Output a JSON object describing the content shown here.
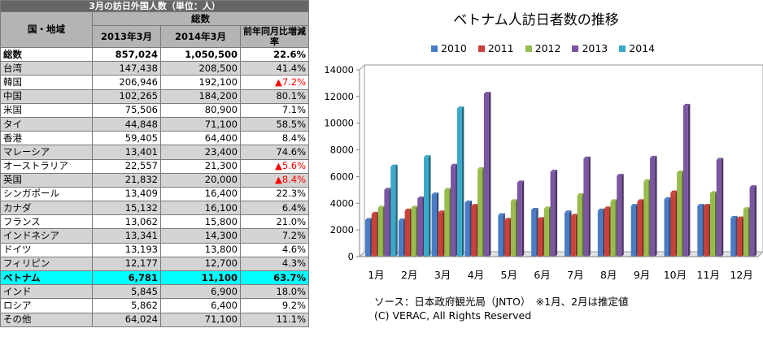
{
  "table": {
    "caption": "3月の訪日外国人数（単位：人）",
    "header": {
      "country_region": "国・地域",
      "total_group": "総数",
      "col_2013": "2013年3月",
      "col_2014": "2014年3月",
      "col_growth": "前年同月比増減率"
    },
    "rows": [
      {
        "name": "総数",
        "v2013": "857,024",
        "v2014": "1,050,500",
        "rate": "22.6%",
        "negative": false
      },
      {
        "name": "台湾",
        "v2013": "147,438",
        "v2014": "208,500",
        "rate": "41.4%",
        "negative": false
      },
      {
        "name": "韓国",
        "v2013": "206,946",
        "v2014": "192,100",
        "rate": "▲7.2%",
        "negative": true
      },
      {
        "name": "中国",
        "v2013": "102,265",
        "v2014": "184,200",
        "rate": "80.1%",
        "negative": false
      },
      {
        "name": "米国",
        "v2013": "75,506",
        "v2014": "80,900",
        "rate": "7.1%",
        "negative": false
      },
      {
        "name": "タイ",
        "v2013": "44,848",
        "v2014": "71,100",
        "rate": "58.5%",
        "negative": false
      },
      {
        "name": "香港",
        "v2013": "59,405",
        "v2014": "64,400",
        "rate": "8.4%",
        "negative": false
      },
      {
        "name": "マレーシア",
        "v2013": "13,401",
        "v2014": "23,400",
        "rate": "74.6%",
        "negative": false
      },
      {
        "name": "オーストラリア",
        "v2013": "22,557",
        "v2014": "21,300",
        "rate": "▲5.6%",
        "negative": true
      },
      {
        "name": "英国",
        "v2013": "21,832",
        "v2014": "20,000",
        "rate": "▲8.4%",
        "negative": true
      },
      {
        "name": "シンガポール",
        "v2013": "13,409",
        "v2014": "16,400",
        "rate": "22.3%",
        "negative": false
      },
      {
        "name": "カナダ",
        "v2013": "15,132",
        "v2014": "16,100",
        "rate": "6.4%",
        "negative": false
      },
      {
        "name": "フランス",
        "v2013": "13,062",
        "v2014": "15,800",
        "rate": "21.0%",
        "negative": false
      },
      {
        "name": "インドネシア",
        "v2013": "13,341",
        "v2014": "14,300",
        "rate": "7.2%",
        "negative": false
      },
      {
        "name": "ドイツ",
        "v2013": "13,193",
        "v2014": "13,800",
        "rate": "4.6%",
        "negative": false
      },
      {
        "name": "フィリピン",
        "v2013": "12,177",
        "v2014": "12,700",
        "rate": "4.3%",
        "negative": false
      },
      {
        "name": "ベトナム",
        "v2013": "6,781",
        "v2014": "11,100",
        "rate": "63.7%",
        "negative": false,
        "highlight": true
      },
      {
        "name": "インド",
        "v2013": "5,845",
        "v2014": "6,900",
        "rate": "18.0%",
        "negative": false
      },
      {
        "name": "ロシア",
        "v2013": "5,862",
        "v2014": "6,400",
        "rate": "9.2%",
        "negative": false
      },
      {
        "name": "その他",
        "v2013": "64,024",
        "v2014": "71,100",
        "rate": "11.1%",
        "negative": false
      }
    ]
  },
  "chart_data": {
    "type": "bar",
    "title": "ベトナム人訪日者数の推移",
    "categories": [
      "1月",
      "2月",
      "3月",
      "4月",
      "5月",
      "6月",
      "7月",
      "8月",
      "9月",
      "10月",
      "11月",
      "12月"
    ],
    "ylim": [
      0,
      14000
    ],
    "yticks": [
      "0",
      "2000",
      "4000",
      "6000",
      "8000",
      "10000",
      "12000",
      "14000"
    ],
    "grid": false,
    "legend_position": "top",
    "series": [
      {
        "name": "2010",
        "color": "#4a7cc4",
        "values": [
          2750,
          2700,
          4650,
          4050,
          3100,
          3500,
          3300,
          3450,
          3800,
          4300,
          3800,
          2900
        ]
      },
      {
        "name": "2011",
        "color": "#c8413a",
        "values": [
          3200,
          3450,
          3300,
          3800,
          2750,
          2800,
          3050,
          3600,
          4150,
          4800,
          3800,
          2850
        ]
      },
      {
        "name": "2012",
        "color": "#98bb4e",
        "values": [
          3650,
          3650,
          5000,
          6550,
          4150,
          3600,
          4600,
          4150,
          5650,
          6300,
          4750,
          3550
        ]
      },
      {
        "name": "2013",
        "color": "#7a56a3",
        "values": [
          5000,
          4350,
          6800,
          12200,
          5550,
          6350,
          7350,
          6050,
          7400,
          11300,
          7250,
          5200
        ]
      },
      {
        "name": "2014",
        "color": "#3ba9c9",
        "values": [
          6750,
          7450,
          11100,
          null,
          null,
          null,
          null,
          null,
          null,
          null,
          null,
          null
        ]
      }
    ],
    "source_note": "ソース：日本政府観光局（JNTO）　※1月、2月は推定値",
    "copyright": "(C) VERAC, All Rights Reserved"
  }
}
